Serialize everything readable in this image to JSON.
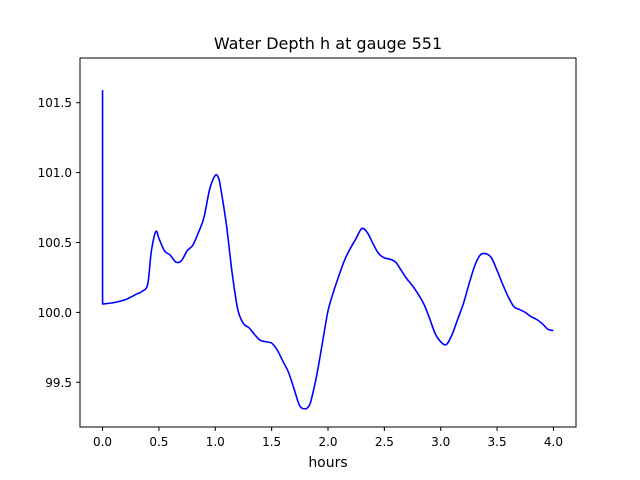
{
  "chart_data": {
    "type": "line",
    "title": "Water Depth h at gauge 551",
    "xlabel": "hours",
    "ylabel": "",
    "xlim": [
      -0.2,
      4.2
    ],
    "ylim": [
      99.18,
      101.82
    ],
    "xticks": [
      0.0,
      0.5,
      1.0,
      1.5,
      2.0,
      2.5,
      3.0,
      3.5,
      4.0
    ],
    "xtick_labels": [
      "0.0",
      "0.5",
      "1.0",
      "1.5",
      "2.0",
      "2.5",
      "3.0",
      "3.5",
      "4.0"
    ],
    "yticks": [
      99.5,
      100.0,
      100.5,
      101.0,
      101.5
    ],
    "ytick_labels": [
      "99.5",
      "100.0",
      "100.5",
      "101.0",
      "101.5"
    ],
    "grid": false,
    "series": [
      {
        "name": "",
        "color": "#0000ff",
        "x": [
          0.0,
          0.0,
          0.0,
          0.1,
          0.2,
          0.3,
          0.35,
          0.4,
          0.43,
          0.46,
          0.48,
          0.5,
          0.55,
          0.6,
          0.65,
          0.7,
          0.75,
          0.8,
          0.85,
          0.9,
          0.95,
          1.0,
          1.03,
          1.05,
          1.1,
          1.15,
          1.2,
          1.25,
          1.3,
          1.35,
          1.4,
          1.45,
          1.5,
          1.55,
          1.6,
          1.65,
          1.7,
          1.75,
          1.8,
          1.83,
          1.85,
          1.9,
          1.95,
          2.0,
          2.05,
          2.1,
          2.15,
          2.2,
          2.25,
          2.3,
          2.35,
          2.4,
          2.45,
          2.5,
          2.55,
          2.6,
          2.65,
          2.7,
          2.75,
          2.8,
          2.85,
          2.9,
          2.95,
          3.0,
          3.05,
          3.1,
          3.15,
          3.2,
          3.25,
          3.3,
          3.35,
          3.4,
          3.45,
          3.5,
          3.55,
          3.6,
          3.65,
          3.7,
          3.75,
          3.8,
          3.85,
          3.9,
          3.95,
          4.0
        ],
        "y": [
          101.59,
          100.06,
          100.06,
          100.07,
          100.09,
          100.13,
          100.15,
          100.2,
          100.42,
          100.55,
          100.58,
          100.53,
          100.44,
          100.41,
          100.36,
          100.37,
          100.44,
          100.48,
          100.57,
          100.68,
          100.88,
          100.98,
          100.96,
          100.88,
          100.62,
          100.28,
          100.02,
          99.92,
          99.89,
          99.84,
          99.8,
          99.79,
          99.78,
          99.73,
          99.65,
          99.57,
          99.45,
          99.33,
          99.31,
          99.33,
          99.37,
          99.55,
          99.78,
          100.01,
          100.15,
          100.27,
          100.38,
          100.46,
          100.53,
          100.6,
          100.57,
          100.49,
          100.42,
          100.39,
          100.38,
          100.36,
          100.3,
          100.24,
          100.19,
          100.13,
          100.06,
          99.96,
          99.85,
          99.79,
          99.77,
          99.84,
          99.95,
          100.06,
          100.2,
          100.33,
          100.41,
          100.42,
          100.39,
          100.3,
          100.2,
          100.11,
          100.04,
          100.02,
          100.0,
          99.97,
          99.95,
          99.92,
          99.88,
          99.87
        ]
      }
    ]
  }
}
